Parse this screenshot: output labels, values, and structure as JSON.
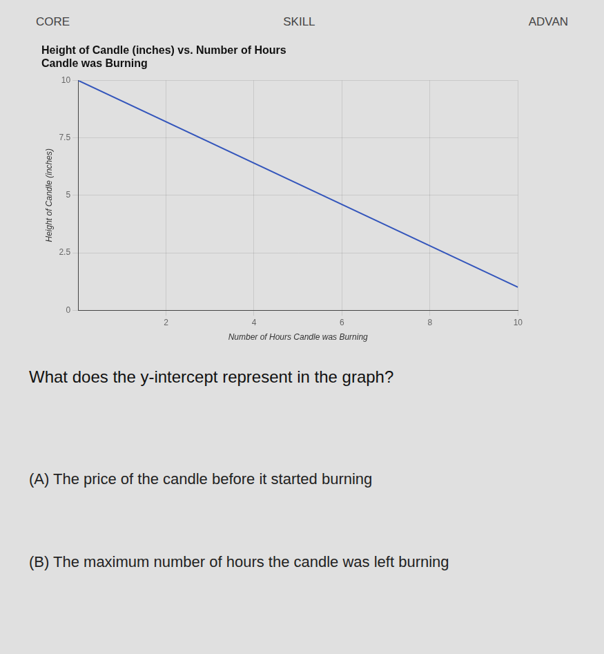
{
  "chart_data": {
    "type": "line",
    "title": [
      "Height of Candle (inches) vs. Number of Hours",
      "Candle was Burning"
    ],
    "x_label": "Number of Hours Candle was Burning",
    "y_label": "Height of Candle (inches)",
    "x": [
      0,
      10
    ],
    "values": [
      10,
      1
    ],
    "color": "#3355bb",
    "xlim": [
      0,
      10
    ],
    "ylim": [
      0,
      10
    ],
    "xticks": [
      2,
      4,
      6,
      8,
      10
    ],
    "yticks": [
      0,
      2.5,
      5,
      7.5,
      10
    ],
    "grid": true,
    "annotations": [
      "CORE",
      "SKILL",
      "ADVAN",
      "What does the y-intercept represent in the graph?",
      "(A) The price of the candle before it started burning",
      "(B) The maximum number of hours the candle was left burning"
    ]
  }
}
